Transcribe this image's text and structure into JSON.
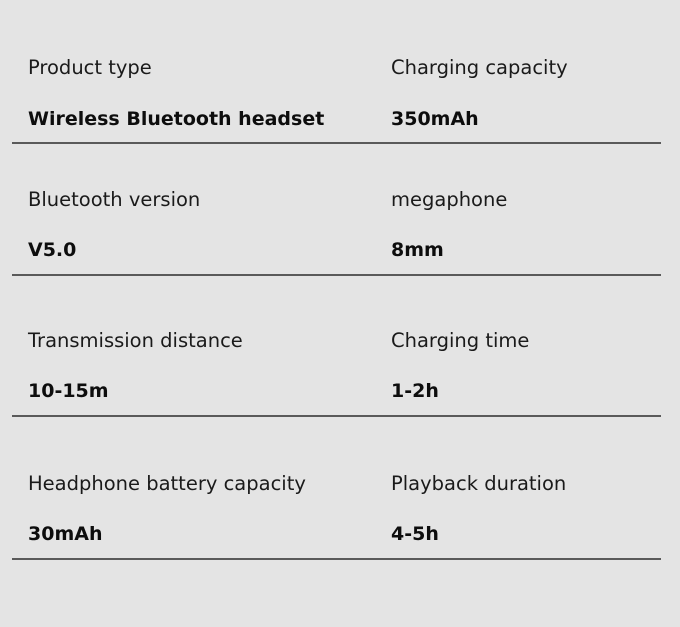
{
  "specs": [
    {
      "left": {
        "label": "Product type",
        "value": "Wireless Bluetooth headset"
      },
      "right": {
        "label": "Charging capacity",
        "value": "350mAh"
      }
    },
    {
      "left": {
        "label": "Bluetooth version",
        "value": "V5.0"
      },
      "right": {
        "label": "megaphone",
        "value": "8mm"
      }
    },
    {
      "left": {
        "label": "Transmission distance",
        "value": "10-15m"
      },
      "right": {
        "label": "Charging time",
        "value": "1-2h"
      }
    },
    {
      "left": {
        "label": "Headphone battery capacity",
        "value": "30mAh"
      },
      "right": {
        "label": "Playback duration",
        "value": "4-5h"
      }
    }
  ]
}
